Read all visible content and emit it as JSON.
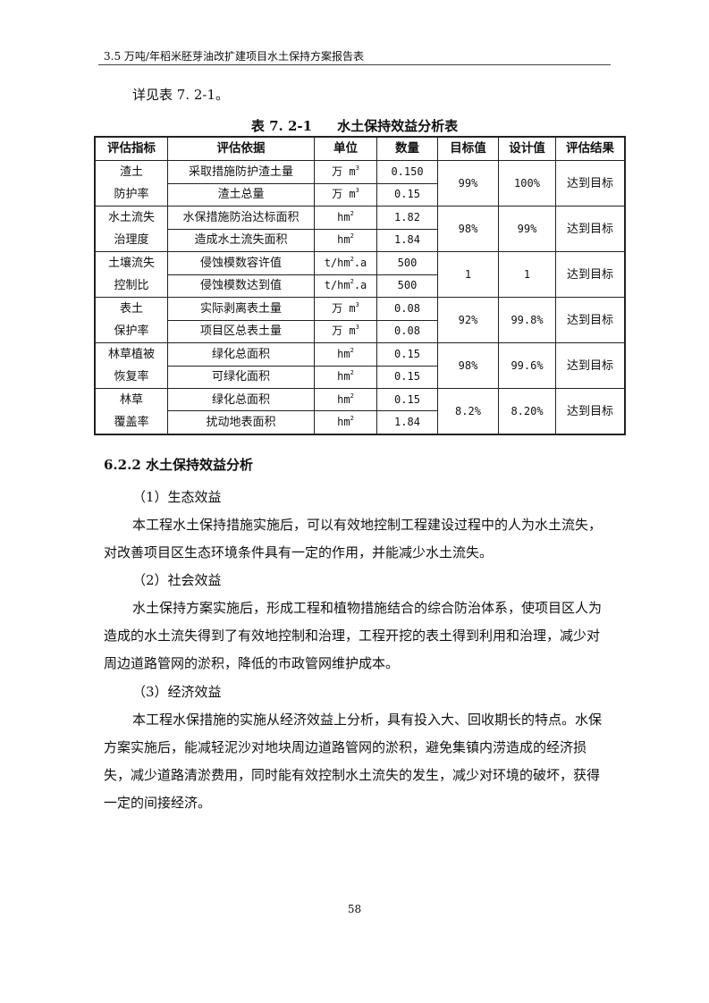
{
  "header": {
    "title": "3.5 万吨/年稻米胚芽油改扩建项目水土保持方案报告表"
  },
  "intro": "详见表 7. 2-1。",
  "table": {
    "caption_number": "表 7. 2-1",
    "caption_title": "水土保持效益分析表",
    "headers": [
      "评估指标",
      "评估依据",
      "单位",
      "数量",
      "目标值",
      "设计值",
      "评估结果"
    ],
    "groups": [
      {
        "indicator": "渣土\n防护率",
        "rows": [
          {
            "basis": "采取措施防护渣土量",
            "unit": "万 m",
            "unit_sup": "3",
            "qty": "0.150"
          },
          {
            "basis": "渣土总量",
            "unit": "万 m",
            "unit_sup": "3",
            "qty": "0.15"
          }
        ],
        "target": "99%",
        "design": "100%",
        "result": "达到目标"
      },
      {
        "indicator": "水土流失\n治理度",
        "rows": [
          {
            "basis": "水保措施防治达标面积",
            "unit": "hm",
            "unit_sup": "2",
            "qty": "1.82"
          },
          {
            "basis": "造成水土流失面积",
            "unit": "hm",
            "unit_sup": "2",
            "qty": "1.84"
          }
        ],
        "target": "98%",
        "design": "99%",
        "result": "达到目标"
      },
      {
        "indicator": "土壤流失\n控制比",
        "rows": [
          {
            "basis": "侵蚀模数容许值",
            "unit": "t/hm",
            "unit_sup": "2",
            "unit_tail": ".a",
            "qty": "500"
          },
          {
            "basis": "侵蚀模数达到值",
            "unit": "t/hm",
            "unit_sup": "2",
            "unit_tail": ".a",
            "qty": "500"
          }
        ],
        "target": "1",
        "design": "1",
        "result": "达到目标"
      },
      {
        "indicator": "表土\n保护率",
        "rows": [
          {
            "basis": "实际剥离表土量",
            "unit": "万 m",
            "unit_sup": "3",
            "qty": "0.08"
          },
          {
            "basis": "项目区总表土量",
            "unit": "万 m",
            "unit_sup": "3",
            "qty": "0.08"
          }
        ],
        "target": "92%",
        "design": "99.8%",
        "result": "达到目标"
      },
      {
        "indicator": "林草植被\n恢复率",
        "rows": [
          {
            "basis": "绿化总面积",
            "unit": "hm",
            "unit_sup": "2",
            "qty": "0.15"
          },
          {
            "basis": "可绿化面积",
            "unit": "hm",
            "unit_sup": "2",
            "qty": "0.15"
          }
        ],
        "target": "98%",
        "design": "99.6%",
        "result": "达到目标"
      },
      {
        "indicator": "林草\n覆盖率",
        "rows": [
          {
            "basis": "绿化总面积",
            "unit": "hm",
            "unit_sup": "2",
            "qty": "0.15"
          },
          {
            "basis": "扰动地表面积",
            "unit": "hm",
            "unit_sup": "2",
            "qty": "1.84"
          }
        ],
        "target": "8.2%",
        "design": "8.20%",
        "result": "达到目标"
      }
    ]
  },
  "section": {
    "title": "6.2.2 水土保持效益分析"
  },
  "paragraphs": [
    {
      "text": "（1）生态效益",
      "top": 541
    },
    {
      "text": "本工程水土保持措施实施后，可以有效地控制工程建设过程中的人为水土流失，对改善项目区生态环境条件具有一定的作用，并能减少水土流失。",
      "top": 572
    },
    {
      "text": "（2）社会效益",
      "top": 634
    },
    {
      "text": "水土保持方案实施后，形成工程和植物措施结合的综合防治体系，使项目区人为造成的水土流失得到了有效地控制和治理，工程开挖的表土得到利用和治理，减少对周边道路管网的淤积，降低的市政管网维护成本。",
      "top": 665
    },
    {
      "text": "（3）经济效益",
      "top": 759
    },
    {
      "text": "本工程水保措施的实施从经济效益上分析，具有投入大、回收期长的特点。水保方案实施后，能减轻泥沙对地块周边道路管网的淤积，避免集镇内涝造成的经济损失，减少道路清淤费用，同时能有效控制水土流失的发生，减少对环境的破坏，获得一定的间接经济。",
      "top": 790
    }
  ],
  "page_number": "58"
}
